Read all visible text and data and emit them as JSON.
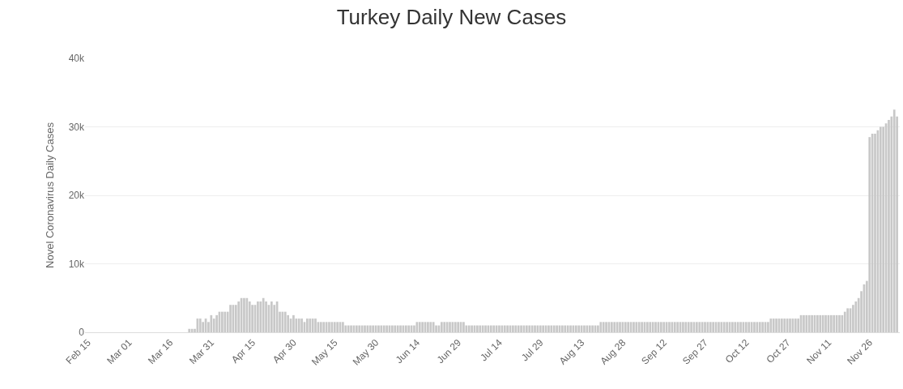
{
  "chart_data": {
    "type": "bar",
    "title": "Turkey Daily New Cases",
    "ylabel": "Novel Coronavirus Daily Cases",
    "x": [
      "--02-15",
      "--02-16",
      "--02-17",
      "--02-18",
      "--02-19",
      "--02-20",
      "--02-21",
      "--02-22",
      "--02-23",
      "--02-24",
      "--02-25",
      "--02-26",
      "--02-27",
      "--02-28",
      "--02-29",
      "--03-01",
      "--03-02",
      "--03-03",
      "--03-04",
      "--03-05",
      "--03-06",
      "--03-07",
      "--03-08",
      "--03-09",
      "--03-10",
      "--03-11",
      "--03-12",
      "--03-13",
      "--03-14",
      "--03-15",
      "--03-16",
      "--03-17",
      "--03-18",
      "--03-19",
      "--03-20",
      "--03-21",
      "--03-22",
      "--03-23",
      "--03-24",
      "--03-25",
      "--03-26",
      "--03-27",
      "--03-28",
      "--03-29",
      "--03-30",
      "--03-31",
      "--04-01",
      "--04-02",
      "--04-03",
      "--04-04",
      "--04-05",
      "--04-06",
      "--04-07",
      "--04-08",
      "--04-09",
      "--04-10",
      "--04-11",
      "--04-12",
      "--04-13",
      "--04-14",
      "--04-15",
      "--04-16",
      "--04-17",
      "--04-18",
      "--04-19",
      "--04-20",
      "--04-21",
      "--04-22",
      "--04-23",
      "--04-24",
      "--04-25",
      "--04-26",
      "--04-27",
      "--04-28",
      "--04-29",
      "--04-30",
      "--05-01",
      "--05-02",
      "--05-03",
      "--05-04",
      "--05-05",
      "--05-06",
      "--05-07",
      "--05-08",
      "--05-09",
      "--05-10",
      "--05-11",
      "--05-12",
      "--05-13",
      "--05-14",
      "--05-15",
      "--05-16",
      "--05-17",
      "--05-18",
      "--05-19",
      "--05-20",
      "--05-21",
      "--05-22",
      "--05-23",
      "--05-24",
      "--05-25",
      "--05-26",
      "--05-27",
      "--05-28",
      "--05-29",
      "--05-30",
      "--05-31",
      "--06-01",
      "--06-02",
      "--06-03",
      "--06-04",
      "--06-05",
      "--06-06",
      "--06-07",
      "--06-08",
      "--06-09",
      "--06-10",
      "--06-11",
      "--06-12",
      "--06-13",
      "--06-14",
      "--06-15",
      "--06-16",
      "--06-17",
      "--06-18",
      "--06-19",
      "--06-20",
      "--06-21",
      "--06-22",
      "--06-23",
      "--06-24",
      "--06-25",
      "--06-26",
      "--06-27",
      "--06-28",
      "--06-29",
      "--06-30",
      "--07-01",
      "--07-02",
      "--07-03",
      "--07-04",
      "--07-05",
      "--07-06",
      "--07-07",
      "--07-08",
      "--07-09",
      "--07-10",
      "--07-11",
      "--07-12",
      "--07-13",
      "--07-14",
      "--07-15",
      "--07-16",
      "--07-17",
      "--07-18",
      "--07-19",
      "--07-20",
      "--07-21",
      "--07-22",
      "--07-23",
      "--07-24",
      "--07-25",
      "--07-26",
      "--07-27",
      "--07-28",
      "--07-29",
      "--07-30",
      "--07-31",
      "--08-01",
      "--08-02",
      "--08-03",
      "--08-04",
      "--08-05",
      "--08-06",
      "--08-07",
      "--08-08",
      "--08-09",
      "--08-10",
      "--08-11",
      "--08-12",
      "--08-13",
      "--08-14",
      "--08-15",
      "--08-16",
      "--08-17",
      "--08-18",
      "--08-19",
      "--08-20",
      "--08-21",
      "--08-22",
      "--08-23",
      "--08-24",
      "--08-25",
      "--08-26",
      "--08-27",
      "--08-28",
      "--08-29",
      "--08-30",
      "--08-31",
      "--09-01",
      "--09-02",
      "--09-03",
      "--09-04",
      "--09-05",
      "--09-06",
      "--09-07",
      "--09-08",
      "--09-09",
      "--09-10",
      "--09-11",
      "--09-12",
      "--09-13",
      "--09-14",
      "--09-15",
      "--09-16",
      "--09-17",
      "--09-18",
      "--09-19",
      "--09-20",
      "--09-21",
      "--09-22",
      "--09-23",
      "--09-24",
      "--09-25",
      "--09-26",
      "--09-27",
      "--09-28",
      "--09-29",
      "--09-30",
      "--10-01",
      "--10-02",
      "--10-03",
      "--10-04",
      "--10-05",
      "--10-06",
      "--10-07",
      "--10-08",
      "--10-09",
      "--10-10",
      "--10-11",
      "--10-12",
      "--10-13",
      "--10-14",
      "--10-15",
      "--10-16",
      "--10-17",
      "--10-18",
      "--10-19",
      "--10-20",
      "--10-21",
      "--10-22",
      "--10-23",
      "--10-24",
      "--10-25",
      "--10-26",
      "--10-27",
      "--10-28",
      "--10-29",
      "--10-30",
      "--10-31",
      "--11-01",
      "--11-02",
      "--11-03",
      "--11-04",
      "--11-05",
      "--11-06",
      "--11-07",
      "--11-08",
      "--11-09",
      "--11-10",
      "--11-11",
      "--11-12",
      "--11-13",
      "--11-14",
      "--11-15",
      "--11-16",
      "--11-17",
      "--11-18",
      "--11-19",
      "--11-20",
      "--11-21",
      "--11-22",
      "--11-23",
      "--11-24",
      "--11-25",
      "--11-26",
      "--11-27",
      "--11-28",
      "--11-29",
      "--11-30",
      "--12-01",
      "--12-02",
      "--12-03",
      "--12-04",
      "--12-05",
      "--12-06"
    ],
    "values": [
      0,
      0,
      0,
      0,
      0,
      0,
      0,
      0,
      0,
      0,
      0,
      0,
      0,
      0,
      0,
      0,
      0,
      0,
      0,
      0,
      0,
      0,
      0,
      0,
      0,
      0,
      0,
      0,
      0,
      0,
      0,
      0,
      0,
      0,
      0,
      0,
      0,
      500,
      500,
      500,
      2000,
      2000,
      1500,
      2000,
      1500,
      2500,
      2000,
      2500,
      3000,
      3000,
      3000,
      3000,
      4000,
      4000,
      4000,
      4500,
      5000,
      5000,
      5000,
      4500,
      4000,
      4000,
      4500,
      4500,
      5000,
      4500,
      4000,
      4500,
      4000,
      4500,
      3000,
      3000,
      3000,
      2500,
      2000,
      2500,
      2000,
      2000,
      2000,
      1500,
      2000,
      2000,
      2000,
      2000,
      1500,
      1500,
      1500,
      1500,
      1500,
      1500,
      1500,
      1500,
      1500,
      1500,
      1000,
      1000,
      1000,
      1000,
      1000,
      1000,
      1000,
      1000,
      1000,
      1000,
      1000,
      1000,
      1000,
      1000,
      1000,
      1000,
      1000,
      1000,
      1000,
      1000,
      1000,
      1000,
      1000,
      1000,
      1000,
      1000,
      1500,
      1500,
      1500,
      1500,
      1500,
      1500,
      1500,
      1000,
      1000,
      1500,
      1500,
      1500,
      1500,
      1500,
      1500,
      1500,
      1500,
      1500,
      1000,
      1000,
      1000,
      1000,
      1000,
      1000,
      1000,
      1000,
      1000,
      1000,
      1000,
      1000,
      1000,
      1000,
      1000,
      1000,
      1000,
      1000,
      1000,
      1000,
      1000,
      1000,
      1000,
      1000,
      1000,
      1000,
      1000,
      1000,
      1000,
      1000,
      1000,
      1000,
      1000,
      1000,
      1000,
      1000,
      1000,
      1000,
      1000,
      1000,
      1000,
      1000,
      1000,
      1000,
      1000,
      1000,
      1000,
      1000,
      1000,
      1500,
      1500,
      1500,
      1500,
      1500,
      1500,
      1500,
      1500,
      1500,
      1500,
      1500,
      1500,
      1500,
      1500,
      1500,
      1500,
      1500,
      1500,
      1500,
      1500,
      1500,
      1500,
      1500,
      1500,
      1500,
      1500,
      1500,
      1500,
      1500,
      1500,
      1500,
      1500,
      1500,
      1500,
      1500,
      1500,
      1500,
      1500,
      1500,
      1500,
      1500,
      1500,
      1500,
      1500,
      1500,
      1500,
      1500,
      1500,
      1500,
      1500,
      1500,
      1500,
      1500,
      1500,
      1500,
      1500,
      1500,
      1500,
      1500,
      1500,
      1500,
      1500,
      2000,
      2000,
      2000,
      2000,
      2000,
      2000,
      2000,
      2000,
      2000,
      2000,
      2000,
      2500,
      2500,
      2500,
      2500,
      2500,
      2500,
      2500,
      2500,
      2500,
      2500,
      2500,
      2500,
      2500,
      2500,
      2500,
      2500,
      3000,
      3500,
      3500,
      4000,
      4500,
      5000,
      6000,
      7000,
      7500,
      28500,
      29000,
      29000,
      29500,
      30000,
      30000,
      30500,
      31000,
      31500,
      32500,
      31500
    ],
    "color": "#c8c8c8",
    "xlim": [
      "--02-14",
      "--12-07"
    ],
    "xticks": [
      {
        "value": "--02-15",
        "label": "Feb 15"
      },
      {
        "value": "--03-01",
        "label": "Mar 01"
      },
      {
        "value": "--03-16",
        "label": "Mar 16"
      },
      {
        "value": "--03-31",
        "label": "Mar 31"
      },
      {
        "value": "--04-15",
        "label": "Apr 15"
      },
      {
        "value": "--04-30",
        "label": "Apr 30"
      },
      {
        "value": "--05-15",
        "label": "May 15"
      },
      {
        "value": "--05-30",
        "label": "May 30"
      },
      {
        "value": "--06-14",
        "label": "Jun 14"
      },
      {
        "value": "--06-29",
        "label": "Jun 29"
      },
      {
        "value": "--07-14",
        "label": "Jul 14"
      },
      {
        "value": "--07-29",
        "label": "Jul 29"
      },
      {
        "value": "--08-13",
        "label": "Aug 13"
      },
      {
        "value": "--08-28",
        "label": "Aug 28"
      },
      {
        "value": "--09-12",
        "label": "Sep 12"
      },
      {
        "value": "--09-27",
        "label": "Sep 27"
      },
      {
        "value": "--10-12",
        "label": "Oct 12"
      },
      {
        "value": "--10-27",
        "label": "Oct 27"
      },
      {
        "value": "--11-11",
        "label": "Nov 11"
      },
      {
        "value": "--11-26",
        "label": "Nov 26"
      }
    ],
    "ylim": [
      0,
      40000
    ],
    "yticks": [
      0,
      {
        "value": 10000,
        "label": "10k"
      },
      {
        "value": 20000,
        "label": "20k"
      },
      {
        "value": 30000,
        "label": "30k"
      },
      {
        "value": 40000,
        "label": "40k"
      }
    ],
    "grid": "y"
  }
}
